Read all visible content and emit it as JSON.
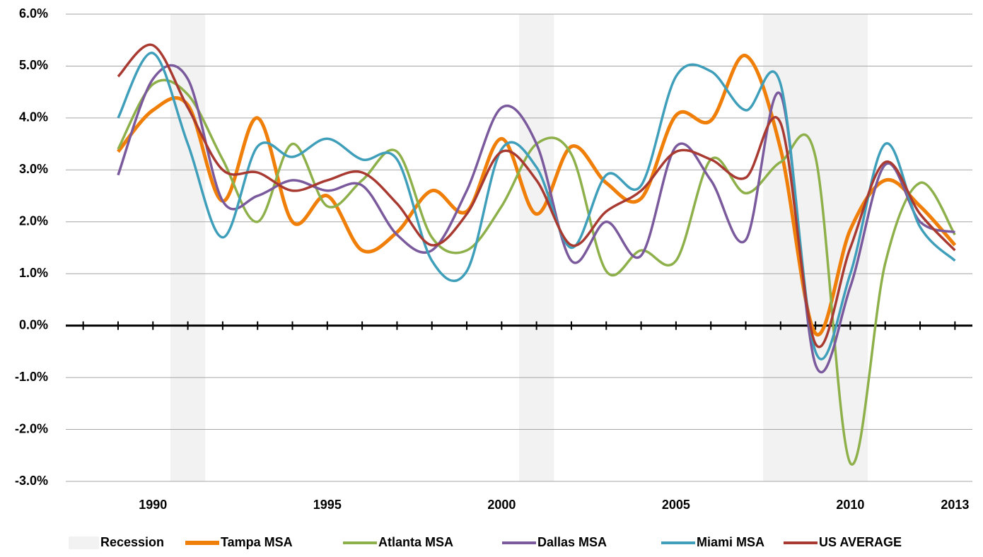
{
  "chart_data": {
    "type": "line",
    "x": [
      1989,
      1990,
      1991,
      1992,
      1993,
      1994,
      1995,
      1996,
      1997,
      1998,
      1999,
      2000,
      2001,
      2002,
      2003,
      2004,
      2005,
      2006,
      2007,
      2008,
      2009,
      2010,
      2011,
      2012,
      2013
    ],
    "xlim": [
      1987.5,
      2013.5
    ],
    "xticks": [
      1990,
      1995,
      2000,
      2005,
      2010,
      2013
    ],
    "xtick_marks": [
      1988,
      1989,
      1990,
      1991,
      1992,
      1993,
      1994,
      1995,
      1996,
      1997,
      1998,
      1999,
      2000,
      2001,
      2002,
      2003,
      2004,
      2005,
      2006,
      2007,
      2008,
      2009,
      2010,
      2011,
      2012,
      2013
    ],
    "ylim": [
      -3,
      6
    ],
    "yticks": [
      {
        "value": -3,
        "label": "-3.0%"
      },
      {
        "value": -2,
        "label": "-2.0%"
      },
      {
        "value": -1,
        "label": "-1.0%"
      },
      {
        "value": 0,
        "label": "0.0%"
      },
      {
        "value": 1,
        "label": "1.0%"
      },
      {
        "value": 2,
        "label": "2.0%"
      },
      {
        "value": 3,
        "label": "3.0%"
      },
      {
        "value": 4,
        "label": "4.0%"
      },
      {
        "value": 5,
        "label": "5.0%"
      },
      {
        "value": 6,
        "label": "6.0%"
      }
    ],
    "grid": true,
    "legend": "bottom",
    "recession": {
      "name": "Recession",
      "color": "#f2f2f2",
      "spans": [
        [
          1990.5,
          1991.5
        ],
        [
          2000.5,
          2001.5
        ],
        [
          2007.5,
          2010.5
        ]
      ]
    },
    "series": [
      {
        "name": "Tampa MSA",
        "color": "#f07f09",
        "values": [
          3.35,
          4.15,
          4.25,
          2.4,
          4.0,
          2.0,
          2.5,
          1.45,
          1.8,
          2.6,
          2.2,
          3.6,
          2.15,
          3.45,
          2.75,
          2.45,
          4.05,
          3.95,
          5.2,
          3.4,
          -0.15,
          1.85,
          2.8,
          2.3,
          1.55
        ]
      },
      {
        "name": "Atlanta MSA",
        "color": "#8eb04a",
        "values": [
          3.4,
          4.65,
          4.45,
          3.2,
          2.0,
          3.5,
          2.3,
          2.8,
          3.35,
          1.7,
          1.45,
          2.3,
          3.5,
          3.3,
          1.05,
          1.45,
          1.25,
          3.2,
          2.55,
          3.15,
          3.25,
          -2.65,
          1.2,
          2.75,
          1.75
        ]
      },
      {
        "name": "Dallas MSA",
        "color": "#7a5a9c",
        "values": [
          2.9,
          4.75,
          4.75,
          2.4,
          2.5,
          2.8,
          2.6,
          2.7,
          1.75,
          1.45,
          2.6,
          4.2,
          3.5,
          1.25,
          2.0,
          1.35,
          3.45,
          2.8,
          1.65,
          4.45,
          -0.75,
          0.75,
          3.1,
          2.0,
          1.8
        ]
      },
      {
        "name": "Miami MSA",
        "color": "#3f9fba",
        "values": [
          4.0,
          5.25,
          3.5,
          1.7,
          3.45,
          3.25,
          3.6,
          3.2,
          3.2,
          1.25,
          1.05,
          3.4,
          3.05,
          1.5,
          2.9,
          2.7,
          4.8,
          4.9,
          4.15,
          4.65,
          -0.5,
          1.0,
          3.5,
          1.9,
          1.25
        ]
      },
      {
        "name": "US AVERAGE",
        "color": "#a83a32",
        "values": [
          4.8,
          5.4,
          4.2,
          3.0,
          2.95,
          2.6,
          2.8,
          2.95,
          2.35,
          1.55,
          2.15,
          3.35,
          2.8,
          1.55,
          2.2,
          2.6,
          3.35,
          3.2,
          2.85,
          3.9,
          -0.35,
          1.5,
          3.15,
          2.15,
          1.45
        ]
      }
    ]
  }
}
